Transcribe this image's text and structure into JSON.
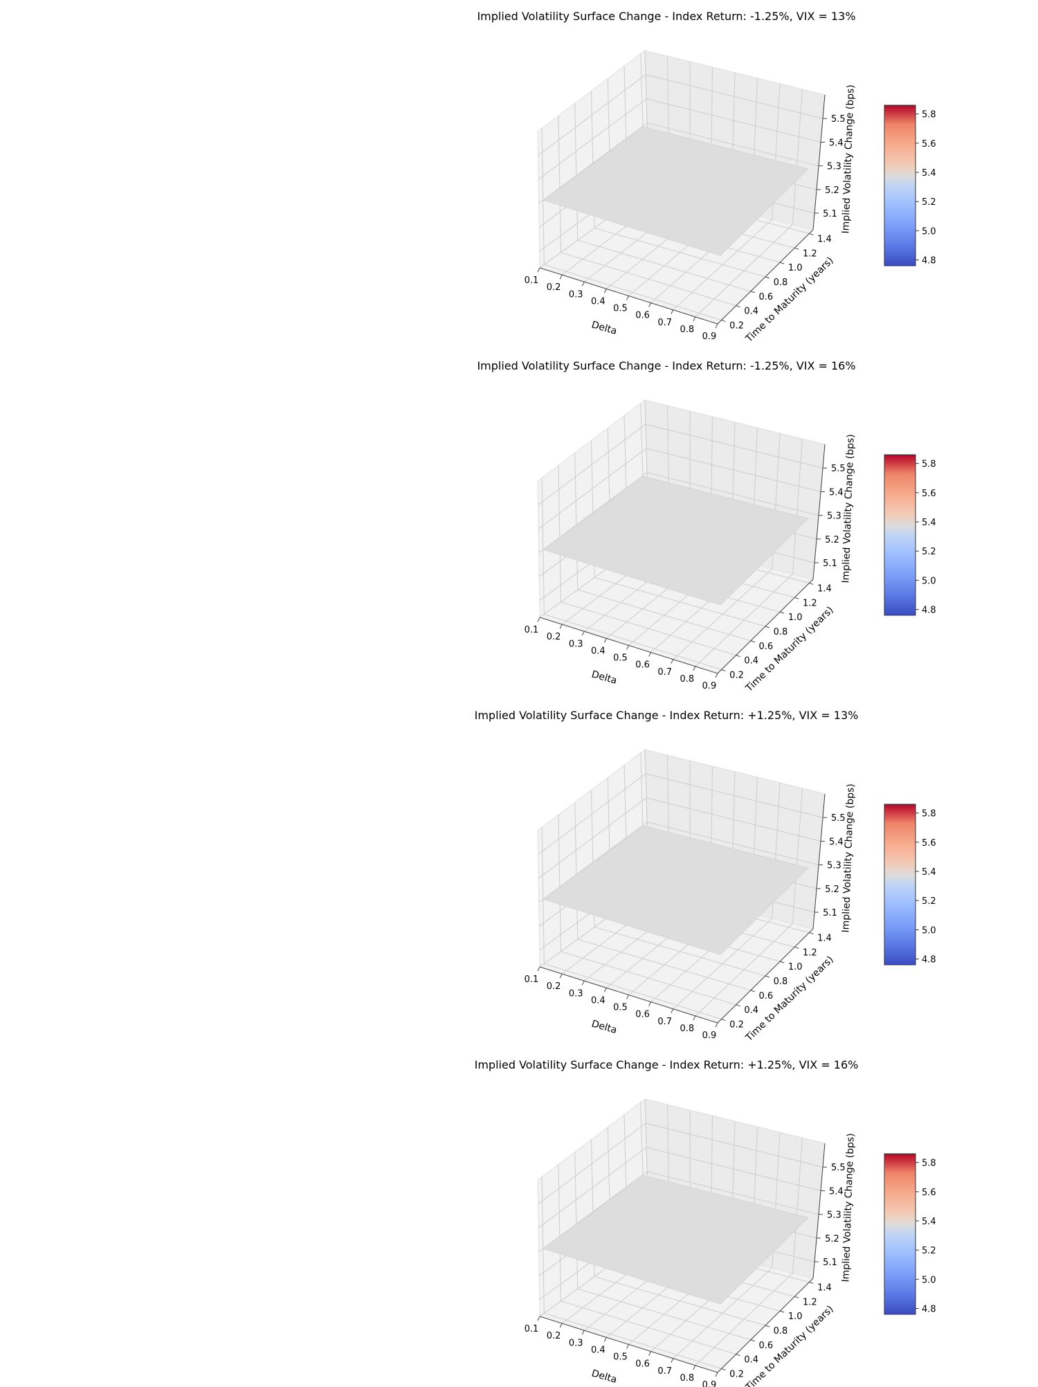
{
  "chart_data": [
    {
      "type": "surface",
      "title": "Implied Volatility Surface Change - Index Return: -1.25%, VIX = 13%",
      "xlabel": "Delta",
      "ylabel": "Time to Maturity (years)",
      "zlabel": "Implied Volatility Change (bps)",
      "x_ticks": [
        "0.1",
        "0.2",
        "0.3",
        "0.4",
        "0.5",
        "0.6",
        "0.7",
        "0.8",
        "0.9"
      ],
      "y_ticks": [
        "0.2",
        "0.4",
        "0.6",
        "0.8",
        "1.0",
        "1.2",
        "1.4"
      ],
      "z_ticks": [
        "5.1",
        "5.2",
        "5.3",
        "5.4",
        "5.5"
      ],
      "colorbar_ticks": [
        "4.8",
        "5.0",
        "5.2",
        "5.4",
        "5.6",
        "5.8"
      ],
      "x_range": [
        0.1,
        0.9
      ],
      "y_range": [
        0.25,
        1.5
      ],
      "z_value": 5.3,
      "zlim": [
        5.03,
        5.6
      ],
      "colorbar_range": [
        4.76,
        5.86
      ],
      "colormap": "coolwarm",
      "surface_color": "#dddddd"
    },
    {
      "type": "surface",
      "title": "Implied Volatility Surface Change - Index Return: -1.25%, VIX = 16%",
      "xlabel": "Delta",
      "ylabel": "Time to Maturity (years)",
      "zlabel": "Implied Volatility Change (bps)",
      "x_ticks": [
        "0.1",
        "0.2",
        "0.3",
        "0.4",
        "0.5",
        "0.6",
        "0.7",
        "0.8",
        "0.9"
      ],
      "y_ticks": [
        "0.2",
        "0.4",
        "0.6",
        "0.8",
        "1.0",
        "1.2",
        "1.4"
      ],
      "z_ticks": [
        "5.1",
        "5.2",
        "5.3",
        "5.4",
        "5.5"
      ],
      "colorbar_ticks": [
        "4.8",
        "5.0",
        "5.2",
        "5.4",
        "5.6",
        "5.8"
      ],
      "x_range": [
        0.1,
        0.9
      ],
      "y_range": [
        0.25,
        1.5
      ],
      "z_value": 5.3,
      "zlim": [
        5.03,
        5.6
      ],
      "colorbar_range": [
        4.76,
        5.86
      ],
      "colormap": "coolwarm",
      "surface_color": "#dddddd"
    },
    {
      "type": "surface",
      "title": "Implied Volatility Surface Change - Index Return: +1.25%, VIX = 13%",
      "xlabel": "Delta",
      "ylabel": "Time to Maturity (years)",
      "zlabel": "Implied Volatility Change (bps)",
      "x_ticks": [
        "0.1",
        "0.2",
        "0.3",
        "0.4",
        "0.5",
        "0.6",
        "0.7",
        "0.8",
        "0.9"
      ],
      "y_ticks": [
        "0.2",
        "0.4",
        "0.6",
        "0.8",
        "1.0",
        "1.2",
        "1.4"
      ],
      "z_ticks": [
        "5.1",
        "5.2",
        "5.3",
        "5.4",
        "5.5"
      ],
      "colorbar_ticks": [
        "4.8",
        "5.0",
        "5.2",
        "5.4",
        "5.6",
        "5.8"
      ],
      "x_range": [
        0.1,
        0.9
      ],
      "y_range": [
        0.25,
        1.5
      ],
      "z_value": 5.3,
      "zlim": [
        5.03,
        5.6
      ],
      "colorbar_range": [
        4.76,
        5.86
      ],
      "colormap": "coolwarm",
      "surface_color": "#dddddd"
    },
    {
      "type": "surface",
      "title": "Implied Volatility Surface Change - Index Return: +1.25%, VIX = 16%",
      "xlabel": "Delta",
      "ylabel": "Time to Maturity (years)",
      "zlabel": "Implied Volatility Change (bps)",
      "x_ticks": [
        "0.1",
        "0.2",
        "0.3",
        "0.4",
        "0.5",
        "0.6",
        "0.7",
        "0.8",
        "0.9"
      ],
      "y_ticks": [
        "0.2",
        "0.4",
        "0.6",
        "0.8",
        "1.0",
        "1.2",
        "1.4"
      ],
      "z_ticks": [
        "5.1",
        "5.2",
        "5.3",
        "5.4",
        "5.5"
      ],
      "colorbar_ticks": [
        "4.8",
        "5.0",
        "5.2",
        "5.4",
        "5.6",
        "5.8"
      ],
      "x_range": [
        0.1,
        0.9
      ],
      "y_range": [
        0.25,
        1.5
      ],
      "z_value": 5.3,
      "zlim": [
        5.03,
        5.6
      ],
      "colorbar_range": [
        4.76,
        5.86
      ],
      "colormap": "coolwarm",
      "surface_color": "#dddddd"
    }
  ]
}
